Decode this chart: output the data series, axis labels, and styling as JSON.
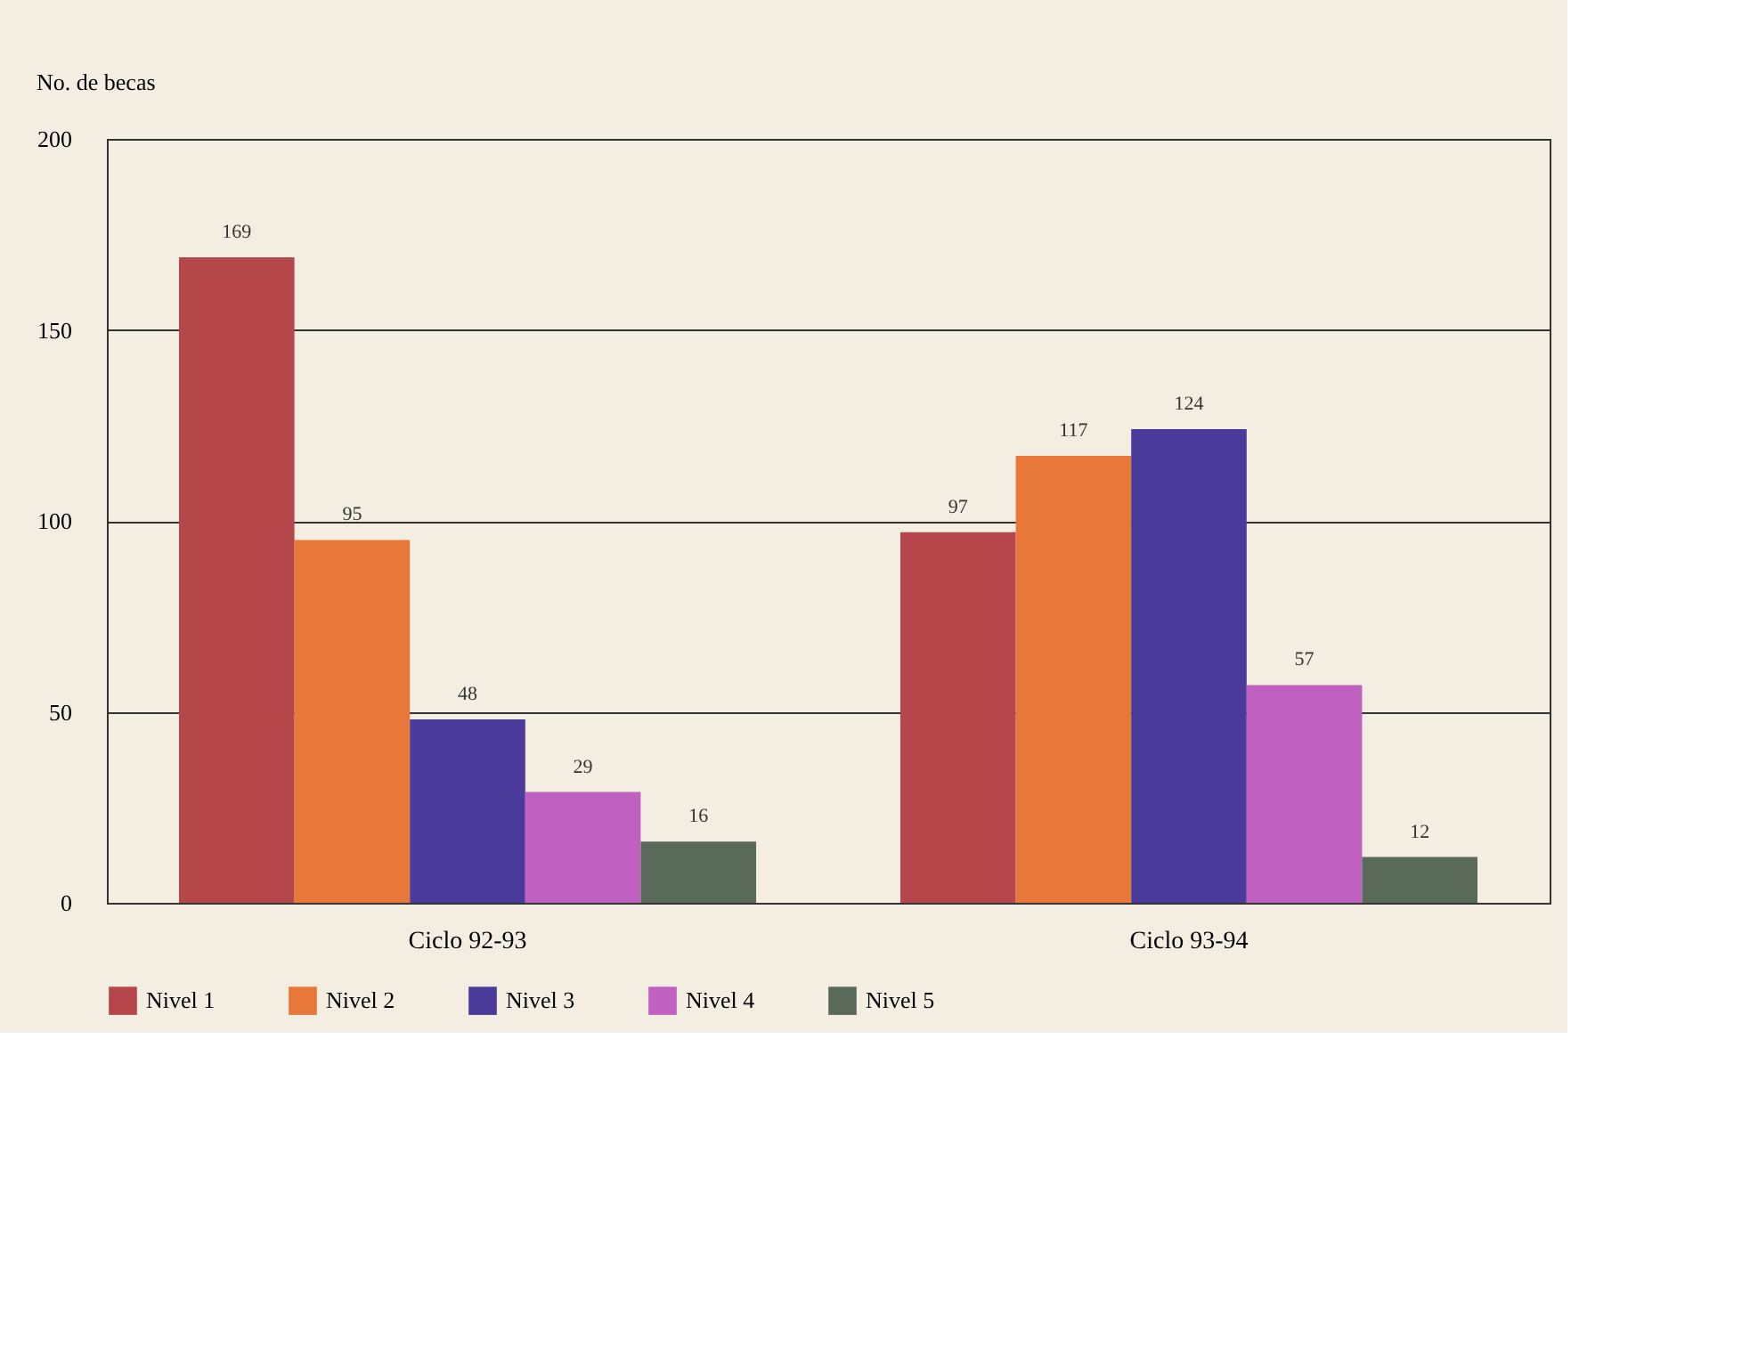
{
  "chart_data": {
    "type": "bar",
    "ylabel": "No. de becas",
    "categories": [
      "Ciclo 92-93",
      "Ciclo 93-94"
    ],
    "series": [
      {
        "name": "Nivel 1",
        "color": "#b5464a",
        "values": [
          169,
          97
        ]
      },
      {
        "name": "Nivel 2",
        "color": "#e8773a",
        "values": [
          95,
          117
        ]
      },
      {
        "name": "Nivel 3",
        "color": "#4a3a9a",
        "values": [
          48,
          124
        ]
      },
      {
        "name": "Nivel 4",
        "color": "#c060c0",
        "values": [
          29,
          57
        ]
      },
      {
        "name": "Nivel 5",
        "color": "#5a6a5a",
        "values": [
          16,
          12
        ]
      }
    ],
    "ylim": [
      0,
      200
    ],
    "yticks": [
      0,
      50,
      100,
      150,
      200
    ],
    "grid": "y",
    "legend": "bottom",
    "data_labels": true
  }
}
